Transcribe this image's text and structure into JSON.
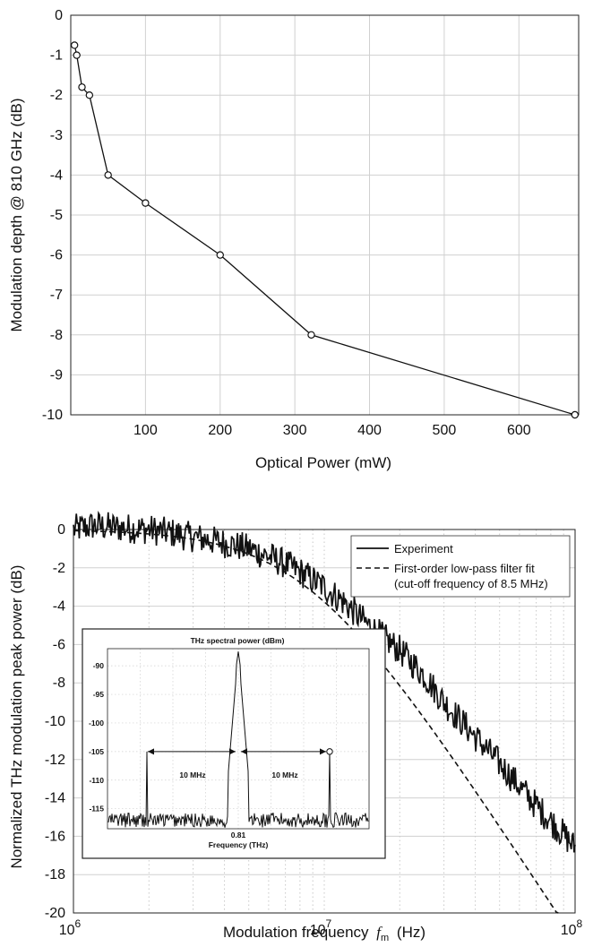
{
  "chart_data": [
    {
      "type": "line",
      "title": "",
      "xlabel": "Optical Power (mW)",
      "ylabel": "Modulation depth @ 810 GHz (dB)",
      "xlim": [
        0,
        680
      ],
      "ylim": [
        -10,
        0
      ],
      "xticks": [
        100,
        200,
        300,
        400,
        500,
        600
      ],
      "yticks": [
        0,
        -1,
        -2,
        -3,
        -4,
        -5,
        -6,
        -7,
        -8,
        -9,
        -10
      ],
      "grid": true,
      "series": [
        {
          "x": [
            5,
            8,
            15,
            25,
            50,
            100,
            200,
            322,
            675
          ],
          "y": [
            -0.75,
            -1.0,
            -1.8,
            -2.0,
            -4.0,
            -4.7,
            -6.0,
            -8.0,
            -10.0
          ],
          "markers": "open-circle",
          "color": "#111111"
        }
      ]
    },
    {
      "type": "line",
      "title": "",
      "xlabel": "Modulation frequency",
      "xlabel_symbol": "f",
      "xlabel_subscript": "m",
      "xlabel_unit": "(Hz)",
      "ylabel": "Normalized THz modulation peak power (dB)",
      "xscale": "log",
      "xlim": [
        1000000,
        100000000
      ],
      "ylim": [
        -20,
        0
      ],
      "xticks": [
        {
          "base": "10",
          "exp": "6"
        },
        {
          "base": "10",
          "exp": "7"
        },
        {
          "base": "10",
          "exp": "8"
        }
      ],
      "yticks": [
        0,
        -2,
        -4,
        -6,
        -8,
        -10,
        -12,
        -14,
        -16,
        -18,
        -20
      ],
      "grid": true,
      "legend": {
        "position": "top-right",
        "entries": [
          {
            "label": "Experiment",
            "style": "solid"
          },
          {
            "label": "First-order low-pass filter fit",
            "label2": "(cut-off frequency of 8.5 MHz)",
            "style": "dashed"
          }
        ]
      },
      "fit": {
        "cutoff_hz": 8500000,
        "order": 1
      },
      "experiment_envelope": {
        "x": [
          1000000,
          1200000,
          1500000,
          2000000,
          2500000,
          3000000,
          4000000,
          5000000,
          6000000,
          7000000,
          8000000,
          10000000,
          12000000,
          15000000,
          20000000,
          25000000,
          30000000,
          40000000,
          50000000,
          60000000,
          70000000,
          80000000,
          90000000,
          100000000
        ],
        "y": [
          0.0,
          0.2,
          0.1,
          0.0,
          -0.2,
          -0.4,
          -0.7,
          -1.0,
          -1.4,
          -1.8,
          -2.2,
          -3.0,
          -3.8,
          -5.0,
          -6.3,
          -7.6,
          -9.0,
          -10.8,
          -12.2,
          -13.4,
          -14.4,
          -15.2,
          -15.9,
          -16.6
        ],
        "noise_db": 0.8
      },
      "inset": {
        "title": "THz spectral power (dBm)",
        "xlabel": "Frequency (THz)",
        "xtick_label": "0.81",
        "yticks": [
          -90,
          -95,
          -100,
          -105,
          -110,
          -115
        ],
        "ylim": [
          -118.5,
          -87
        ],
        "noise_floor_dbm": -117,
        "peak_dbm": -87.5,
        "sideband_dbm": -105,
        "annotations": [
          "10 MHz",
          "10 MHz"
        ]
      }
    }
  ]
}
